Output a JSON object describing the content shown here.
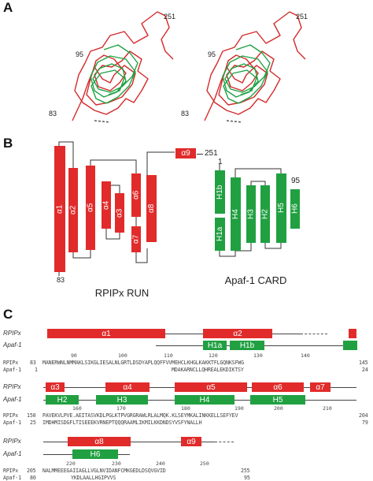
{
  "panels": {
    "a": "A",
    "b": "B",
    "c": "C"
  },
  "panel_a": {
    "left": {
      "top_res": "251",
      "mid_res": "95",
      "bottom_res": "83"
    },
    "right": {
      "top_res": "251",
      "mid_res": "95",
      "bottom_res": "83"
    }
  },
  "panel_b": {
    "run_caption": "RPIPx RUN",
    "card_caption": "Apaf-1 CARD",
    "run_start": "83",
    "run_end": "251",
    "card_start": "1",
    "card_end": "95",
    "run_helices": [
      "α1",
      "α2",
      "α5",
      "α4",
      "α3",
      "α6",
      "α7",
      "α8",
      "α9"
    ],
    "card_helices": [
      "H1b",
      "H1a",
      "H4",
      "H3",
      "H2",
      "H5",
      "H6"
    ]
  },
  "panel_c": {
    "row1": {
      "labels": [
        "RPIPx",
        "Apaf-1"
      ],
      "red": [
        "α1",
        "α2"
      ],
      "green": [
        "H1a",
        "H1b"
      ],
      "ruler": [
        "90",
        "100",
        "110",
        "120",
        "130",
        "140"
      ],
      "seq_rpipx_start": "83",
      "seq_rpipx": "MANERWNLNMMAKLSIKGLIESALNLGRTLDSDYAPLQQFFVVMEHCLKHGLKAKKTFLGQNKSFWG",
      "seq_rpipx_end": "145",
      "seq_apaf_start": "1",
      "seq_apaf": "MDAKARNCLLQHREALEKDIKTSY",
      "seq_apaf_end": "24"
    },
    "row2": {
      "labels": [
        "RPIPx",
        "Apaf-1"
      ],
      "red": [
        "α3",
        "α4",
        "α5",
        "α6",
        "α7"
      ],
      "green": [
        "H2",
        "H3",
        "H4",
        "H5"
      ],
      "ruler": [
        "160",
        "170",
        "180",
        "190",
        "200",
        "210"
      ],
      "seq_rpipx_start": "150",
      "seq_rpipx": "PAVEKVLPVE.AEITASVKDLPGLKTPVGRGRAWLRLALMQK.KLSEYMKALINKKELLSEFYEV",
      "seq_rpipx_end": "204",
      "seq_apaf_start": "25",
      "seq_apaf": "IMDHMISDGFLTISEEEKVRNEPTQQQRAAMLIKMILKKDNDSYVSFYNALLH",
      "seq_apaf_end": "79"
    },
    "row3": {
      "labels": [
        "RPIPx",
        "Apaf-1"
      ],
      "red": [
        "α8",
        "α9"
      ],
      "green": [
        "H6"
      ],
      "ruler": [
        "220",
        "230",
        "240",
        "250"
      ],
      "seq_rpipx_start": "205",
      "seq_rpipx": "NALMMEEEGAIIAGLLVGLNVIDANFCMKGEDLDSQVGVID",
      "seq_rpipx_end": "255",
      "seq_apaf_start": "80",
      "seq_apaf": "YKDLAALLHGIPVVS",
      "seq_apaf_end": "95"
    }
  }
}
